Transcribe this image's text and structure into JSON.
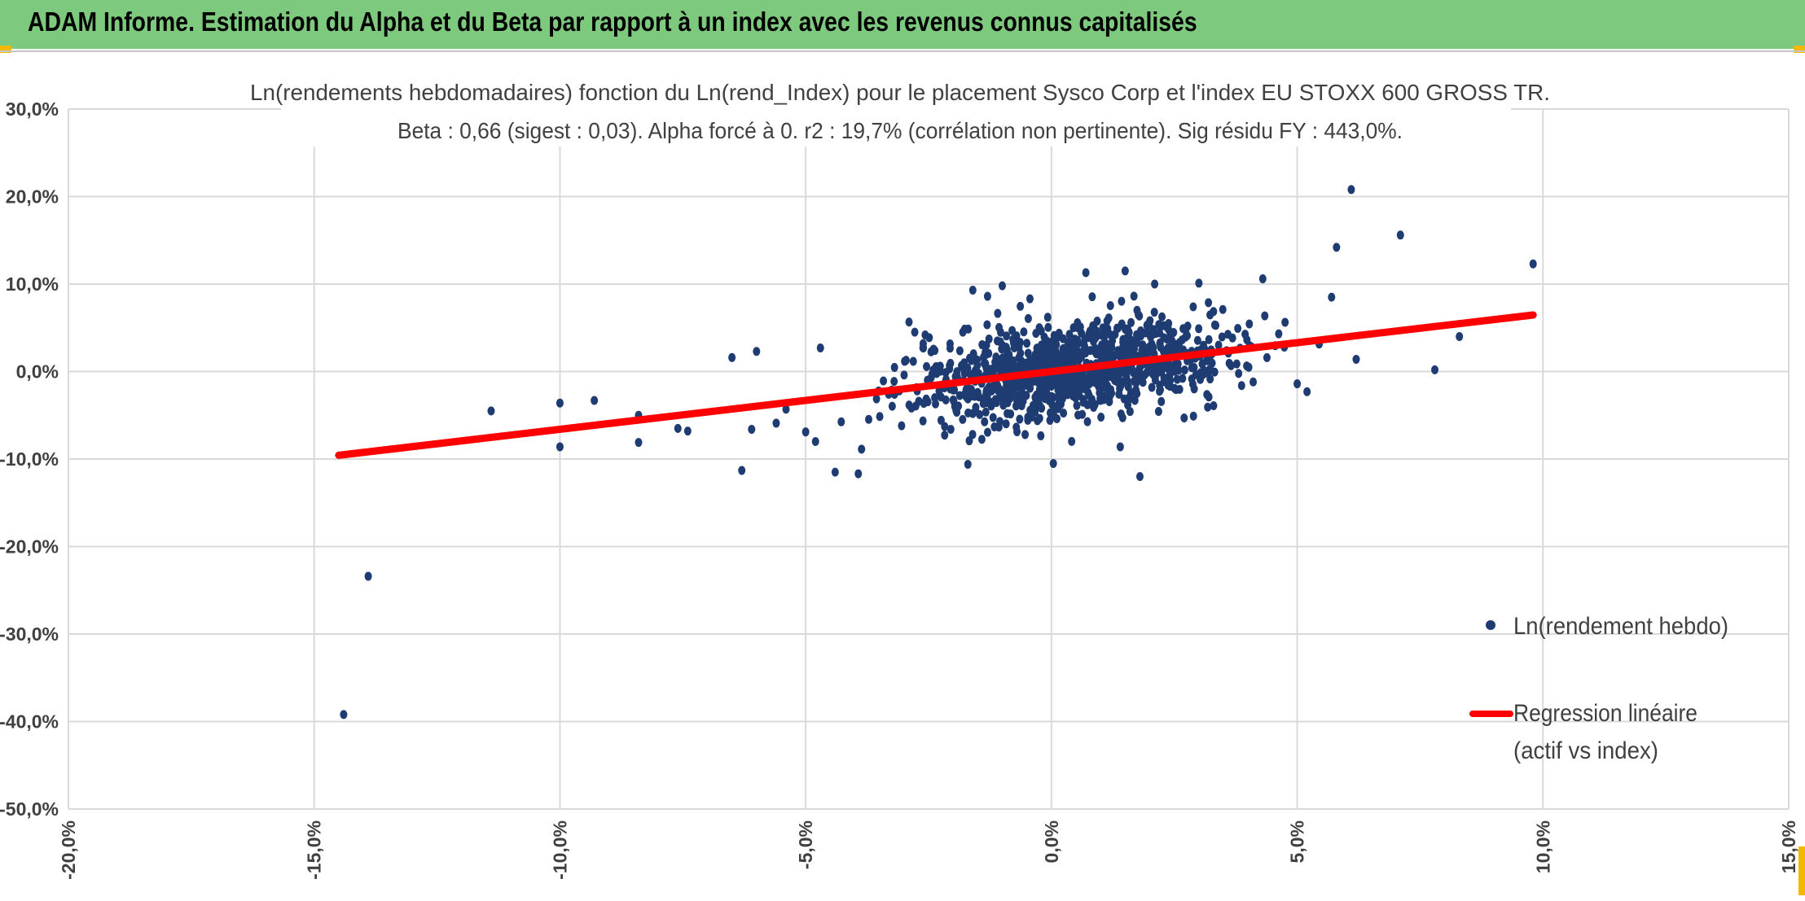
{
  "header": {
    "title": "ADAM Informe. Estimation du Alpha et du Beta par rapport à un index avec les revenus connus capitalisés"
  },
  "colors": {
    "header_bg": "#7dc97d",
    "corner_accent": "#f5b800",
    "points": "#1f3c72",
    "regression": "#ff0000",
    "grid": "#d9d9d9"
  },
  "chart_data": {
    "type": "scatter",
    "title_line1": "Ln(rendements hebdomadaires) fonction du Ln(rend_Index) pour le placement Sysco Corp et l'index EU STOXX 600 GROSS TR.",
    "title_line2": "Beta : 0,66 (sigest : 0,03). Alpha forcé à 0. r2 : 19,7% (corrélation non pertinente). Sig résidu FY : 443,0%.",
    "xlim": [
      -20,
      15
    ],
    "ylim": [
      -50,
      30
    ],
    "x_ticks": [
      -20,
      -15,
      -10,
      -5,
      0,
      5,
      10,
      15
    ],
    "y_ticks": [
      30,
      20,
      10,
      0,
      -10,
      -20,
      -30,
      -40,
      -50
    ],
    "x_tick_labels": [
      "-20,0%",
      "-15,0%",
      "-10,0%",
      "-5,0%",
      "0,0%",
      "5,0%",
      "10,0%",
      "15,0%"
    ],
    "y_tick_labels": [
      "30,0%",
      "20,0%",
      "10,0%",
      "0,0%",
      "-10,0%",
      "-20,0%",
      "-30,0%",
      "-40,0%",
      "-50,0%"
    ],
    "grid": true,
    "legend_position": "right",
    "legend": {
      "points_label": "Ln(rendement hebdo)",
      "line_label_1": "Regression linéaire",
      "line_label_2": "(actif vs index)"
    },
    "regression": {
      "beta": 0.66,
      "alpha": 0,
      "x_range": [
        -14.5,
        9.8
      ]
    },
    "outliers": [
      {
        "x": -14.4,
        "y": -39.2
      },
      {
        "x": -13.9,
        "y": -23.4
      },
      {
        "x": -11.4,
        "y": -4.5
      },
      {
        "x": -10.0,
        "y": -3.6
      },
      {
        "x": -10.0,
        "y": -8.6
      },
      {
        "x": -9.3,
        "y": -3.3
      },
      {
        "x": -8.4,
        "y": -8.1
      },
      {
        "x": -8.4,
        "y": -5.0
      },
      {
        "x": -7.6,
        "y": -6.5
      },
      {
        "x": -7.4,
        "y": -6.8
      },
      {
        "x": -6.3,
        "y": -11.3
      },
      {
        "x": -4.4,
        "y": -11.5
      },
      {
        "x": -1.7,
        "y": -10.6
      },
      {
        "x": 1.8,
        "y": -12.0
      },
      {
        "x": 6.1,
        "y": 20.8
      },
      {
        "x": 7.1,
        "y": 15.6
      },
      {
        "x": 9.8,
        "y": 12.3
      },
      {
        "x": 5.8,
        "y": 14.2
      },
      {
        "x": 5.7,
        "y": 8.5
      },
      {
        "x": 7.8,
        "y": 0.2
      },
      {
        "x": 8.3,
        "y": 4.0
      },
      {
        "x": 6.2,
        "y": 1.4
      },
      {
        "x": 0.7,
        "y": 11.3
      },
      {
        "x": 1.5,
        "y": 11.5
      },
      {
        "x": 2.1,
        "y": 10.0
      },
      {
        "x": 3.0,
        "y": 10.1
      },
      {
        "x": 4.3,
        "y": 10.6
      },
      {
        "x": -1.0,
        "y": 9.8
      },
      {
        "x": -1.6,
        "y": 9.3
      },
      {
        "x": -1.3,
        "y": 8.6
      },
      {
        "x": -6.5,
        "y": 1.6
      },
      {
        "x": -6.0,
        "y": 2.3
      },
      {
        "x": -4.7,
        "y": 2.7
      },
      {
        "x": -5.4,
        "y": -4.3
      },
      {
        "x": -5.6,
        "y": -5.9
      },
      {
        "x": -6.1,
        "y": -6.6
      },
      {
        "x": -5.0,
        "y": -6.9
      },
      {
        "x": -4.8,
        "y": -8.0
      },
      {
        "x": 5.2,
        "y": -2.3
      },
      {
        "x": 5.0,
        "y": -1.4
      },
      {
        "x": 2.7,
        "y": -5.3
      },
      {
        "x": 1.4,
        "y": -8.6
      }
    ],
    "cluster": {
      "count": 1100,
      "x_sd": 1.6,
      "beta": 0.66,
      "resid_sd": 2.6,
      "seed": 7
    }
  }
}
